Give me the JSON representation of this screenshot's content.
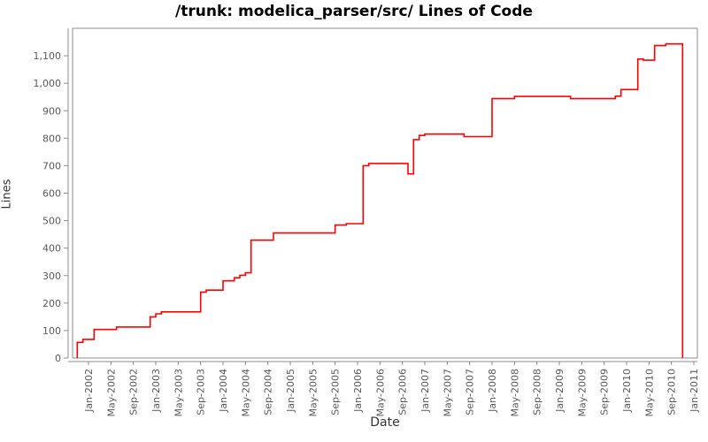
{
  "chart_data": {
    "type": "line",
    "subtype": "step",
    "title": "/trunk: modelica_parser/src/ Lines of Code",
    "xlabel": "Date",
    "ylabel": "Lines",
    "grid": false,
    "legend_position": "none",
    "ylim": [
      0,
      1200
    ],
    "x_start": "2001-11",
    "x_end": "2011-01",
    "y_tick_values": [
      0,
      100,
      200,
      300,
      400,
      500,
      600,
      700,
      800,
      900,
      1000,
      1100
    ],
    "y_tick_labels": [
      "0",
      "100",
      "200",
      "300",
      "400",
      "500",
      "600",
      "700",
      "800",
      "900",
      "1,000",
      "1,100"
    ],
    "x_tick_labels": [
      "Jan-2002",
      "May-2002",
      "Sep-2002",
      "Jan-2003",
      "May-2003",
      "Sep-2003",
      "Jan-2004",
      "May-2004",
      "Sep-2004",
      "Jan-2005",
      "May-2005",
      "Sep-2005",
      "Jan-2006",
      "May-2006",
      "Sep-2006",
      "Jan-2007",
      "May-2007",
      "Sep-2007",
      "Jan-2008",
      "May-2008",
      "Sep-2008",
      "Jan-2009",
      "May-2009",
      "Sep-2009",
      "Jan-2010",
      "May-2010",
      "Sep-2010",
      "Jan-2011"
    ],
    "series": [
      {
        "name": "Lines of Code",
        "color": "#ff0000",
        "step": true,
        "starts_at_zero": true,
        "points": [
          [
            "2001-11",
            57
          ],
          [
            "2001-12",
            68
          ],
          [
            "2002-02",
            104
          ],
          [
            "2002-06",
            113
          ],
          [
            "2002-12",
            150
          ],
          [
            "2003-01",
            161
          ],
          [
            "2003-02",
            168
          ],
          [
            "2003-09",
            240
          ],
          [
            "2003-10",
            247
          ],
          [
            "2004-01",
            281
          ],
          [
            "2004-03",
            292
          ],
          [
            "2004-04",
            301
          ],
          [
            "2004-05",
            310
          ],
          [
            "2004-06",
            429
          ],
          [
            "2004-10",
            455
          ],
          [
            "2005-09",
            484
          ],
          [
            "2005-11",
            489
          ],
          [
            "2006-02",
            700
          ],
          [
            "2006-03",
            708
          ],
          [
            "2006-10",
            670
          ],
          [
            "2006-11",
            795
          ],
          [
            "2006-12",
            810
          ],
          [
            "2007-01",
            815
          ],
          [
            "2007-08",
            806
          ],
          [
            "2008-01",
            944
          ],
          [
            "2008-05",
            952
          ],
          [
            "2009-03",
            944
          ],
          [
            "2009-11",
            953
          ],
          [
            "2009-12",
            977
          ],
          [
            "2010-03",
            1088
          ],
          [
            "2010-04",
            1084
          ],
          [
            "2010-06",
            1137
          ],
          [
            "2010-08",
            1143
          ],
          [
            "2010-11",
            0
          ]
        ]
      }
    ],
    "colors": {
      "line": "#ff0000",
      "tick_label": "#595959",
      "axis": "#8c8c8c",
      "axis_title": "#333333",
      "title": "#000000",
      "background": "#ffffff"
    }
  }
}
